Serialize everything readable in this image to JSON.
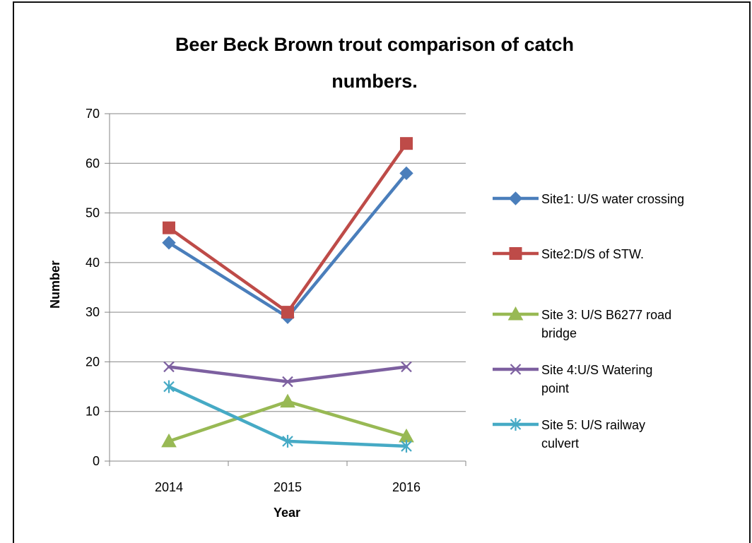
{
  "chart_data": {
    "type": "line",
    "title_lines": [
      "Beer Beck Brown trout comparison of catch",
      "numbers."
    ],
    "xlabel": "Year",
    "ylabel": "Number",
    "categories": [
      "2014",
      "2015",
      "2016"
    ],
    "ylim": [
      0,
      70
    ],
    "yticks": [
      0,
      10,
      20,
      30,
      40,
      50,
      60,
      70
    ],
    "grid": "horizontal",
    "legend_position": "right",
    "series": [
      {
        "name_lines": [
          "Site1: U/S water crossing"
        ],
        "values": [
          44,
          29,
          58
        ],
        "color": "#4a7ebb",
        "marker": "diamond"
      },
      {
        "name_lines": [
          "Site2:D/S of STW."
        ],
        "values": [
          47,
          30,
          64
        ],
        "color": "#be4b48",
        "marker": "square"
      },
      {
        "name_lines": [
          "Site 3: U/S B6277 road",
          "bridge"
        ],
        "values": [
          4,
          12,
          5
        ],
        "color": "#98b954",
        "marker": "triangle"
      },
      {
        "name_lines": [
          "Site 4:U/S Watering",
          "point"
        ],
        "values": [
          19,
          16,
          19
        ],
        "color": "#7d60a0",
        "marker": "x"
      },
      {
        "name_lines": [
          "Site 5: U/S railway",
          "culvert"
        ],
        "values": [
          15,
          4,
          3
        ],
        "color": "#46aac5",
        "marker": "star"
      }
    ]
  }
}
